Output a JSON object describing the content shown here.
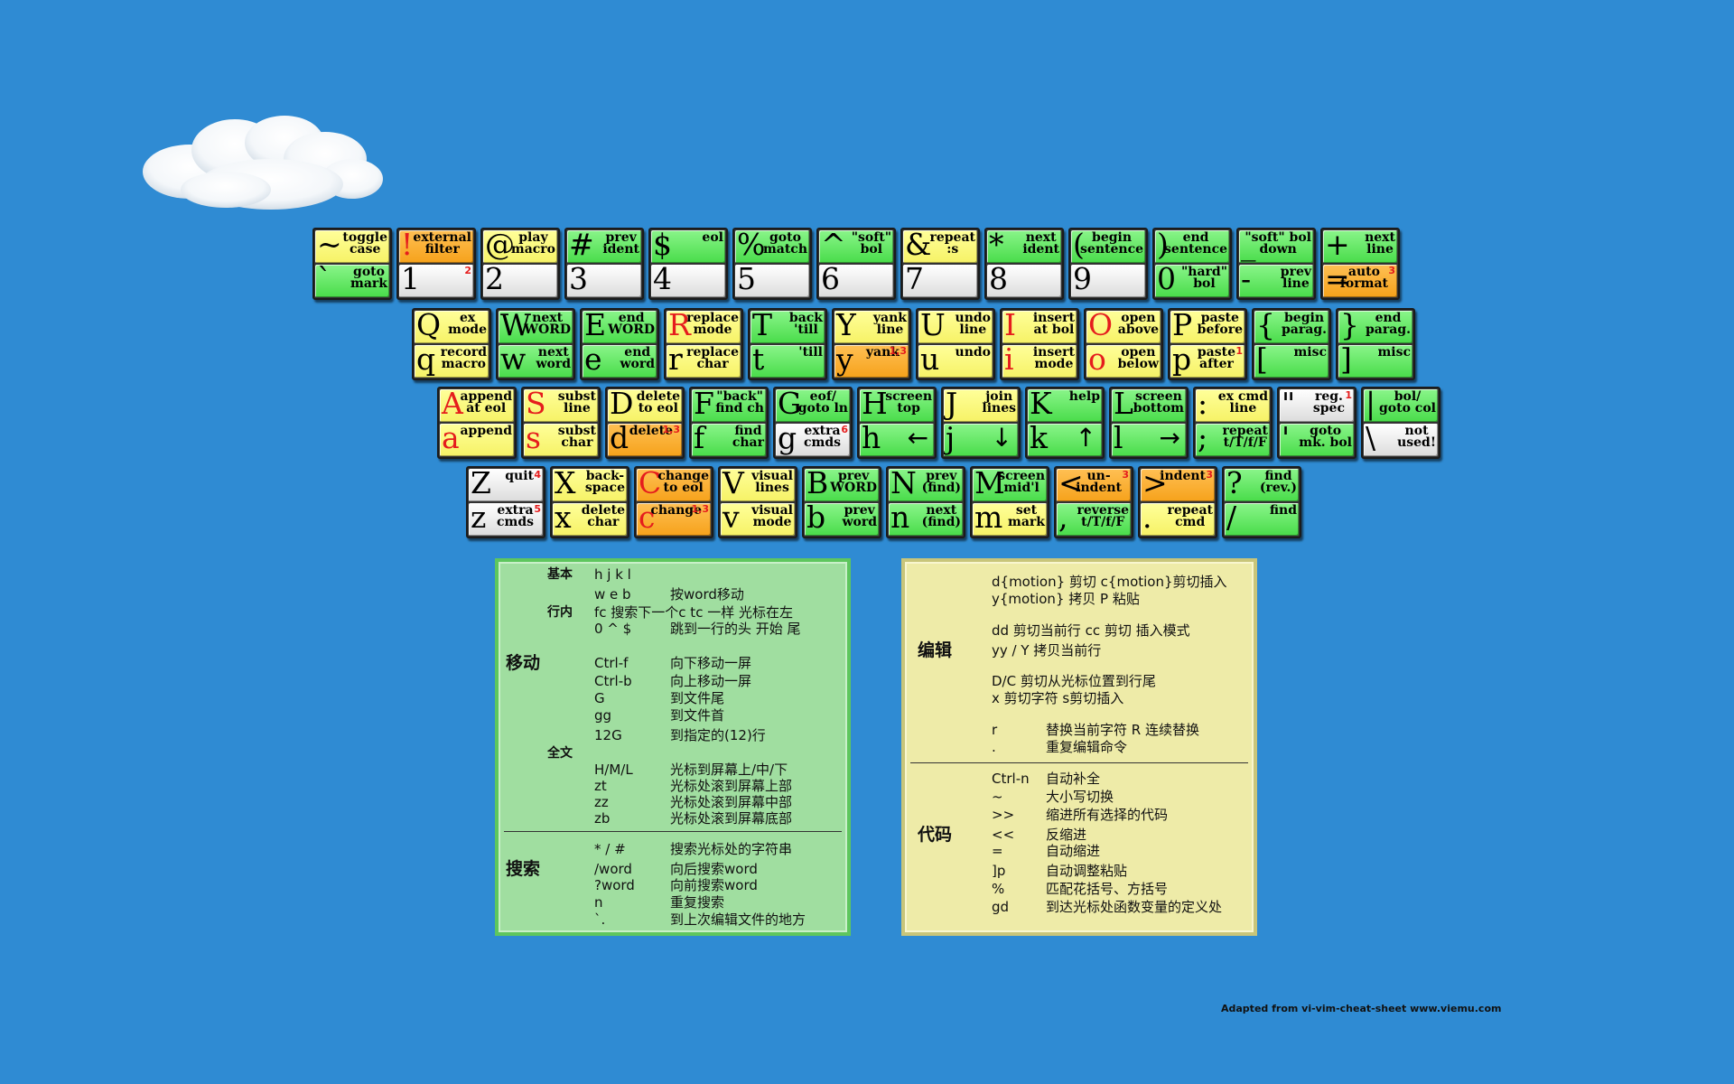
{
  "keyboard": {
    "rows": [
      [
        {
          "top": {
            "c": "~",
            "d": "toggle\ncase",
            "col": "y"
          },
          "bot": {
            "c": "`",
            "d": "goto\nmark",
            "col": "g"
          }
        },
        {
          "top": {
            "c": "!",
            "d": "external\nfilter",
            "col": "o",
            "red": true
          },
          "bot": {
            "c": "1",
            "d": "",
            "col": "w",
            "note": "2"
          }
        },
        {
          "top": {
            "c": "@",
            "d": "play\nmacro",
            "col": "y"
          },
          "bot": {
            "c": "2",
            "d": "",
            "col": "w"
          }
        },
        {
          "top": {
            "c": "#",
            "d": "prev\nident",
            "col": "g"
          },
          "bot": {
            "c": "3",
            "d": "",
            "col": "w"
          }
        },
        {
          "top": {
            "c": "$",
            "d": "eol",
            "col": "g"
          },
          "bot": {
            "c": "4",
            "d": "",
            "col": "w"
          }
        },
        {
          "top": {
            "c": "%",
            "d": "goto\nmatch",
            "col": "g"
          },
          "bot": {
            "c": "5",
            "d": "",
            "col": "w"
          }
        },
        {
          "top": {
            "c": "^",
            "d": "\"soft\"\nbol",
            "col": "g"
          },
          "bot": {
            "c": "6",
            "d": "",
            "col": "w"
          }
        },
        {
          "top": {
            "c": "&",
            "d": "repeat\n:s",
            "col": "y"
          },
          "bot": {
            "c": "7",
            "d": "",
            "col": "w"
          }
        },
        {
          "top": {
            "c": "*",
            "d": "next\nident",
            "col": "g"
          },
          "bot": {
            "c": "8",
            "d": "",
            "col": "w"
          }
        },
        {
          "top": {
            "c": "(",
            "d": "begin\nsentence",
            "col": "g"
          },
          "bot": {
            "c": "9",
            "d": "",
            "col": "w"
          }
        },
        {
          "top": {
            "c": ")",
            "d": "end\nsentence",
            "col": "g"
          },
          "bot": {
            "c": "0",
            "d": "\"hard\"\nbol",
            "col": "g"
          }
        },
        {
          "top": {
            "c": "_",
            "d": "\"soft\" bol\ndown",
            "col": "g"
          },
          "bot": {
            "c": "-",
            "d": "prev\nline",
            "col": "g"
          }
        },
        {
          "top": {
            "c": "+",
            "d": "next\nline",
            "col": "g"
          },
          "bot": {
            "c": "=",
            "d": "auto\nformat",
            "col": "o",
            "note": "3"
          }
        }
      ],
      [
        {
          "top": {
            "c": "Q",
            "d": "ex\nmode",
            "col": "y"
          },
          "bot": {
            "c": "q",
            "d": "record\nmacro",
            "col": "y"
          }
        },
        {
          "top": {
            "c": "W",
            "d": "next\nWORD",
            "col": "g"
          },
          "bot": {
            "c": "w",
            "d": "next\nword",
            "col": "g"
          }
        },
        {
          "top": {
            "c": "E",
            "d": "end\nWORD",
            "col": "g"
          },
          "bot": {
            "c": "e",
            "d": "end\nword",
            "col": "g"
          }
        },
        {
          "top": {
            "c": "R",
            "d": "replace\nmode",
            "col": "y",
            "red": true
          },
          "bot": {
            "c": "r",
            "d": "replace\nchar",
            "col": "y"
          }
        },
        {
          "top": {
            "c": "T",
            "d": "back\n'till",
            "col": "g"
          },
          "bot": {
            "c": "t",
            "d": "'till",
            "col": "g"
          }
        },
        {
          "top": {
            "c": "Y",
            "d": "yank\nline",
            "col": "y"
          },
          "bot": {
            "c": "y",
            "d": "yank",
            "col": "o",
            "note": "1,3"
          }
        },
        {
          "top": {
            "c": "U",
            "d": "undo\nline",
            "col": "y"
          },
          "bot": {
            "c": "u",
            "d": "undo",
            "col": "y"
          }
        },
        {
          "top": {
            "c": "I",
            "d": "insert\nat bol",
            "col": "y",
            "red": true
          },
          "bot": {
            "c": "i",
            "d": "insert\nmode",
            "col": "y",
            "red": true
          }
        },
        {
          "top": {
            "c": "O",
            "d": "open\nabove",
            "col": "y",
            "red": true
          },
          "bot": {
            "c": "o",
            "d": "open\nbelow",
            "col": "y",
            "red": true
          }
        },
        {
          "top": {
            "c": "P",
            "d": "paste\nbefore",
            "col": "y"
          },
          "bot": {
            "c": "p",
            "d": "paste\nafter",
            "col": "y",
            "note": "1"
          }
        },
        {
          "top": {
            "c": "{",
            "d": "begin\nparag.",
            "col": "g"
          },
          "bot": {
            "c": "[",
            "d": "misc",
            "col": "g"
          }
        },
        {
          "top": {
            "c": "}",
            "d": "end\nparag.",
            "col": "g"
          },
          "bot": {
            "c": "]",
            "d": "misc",
            "col": "g"
          }
        }
      ],
      [
        {
          "top": {
            "c": "A",
            "d": "append\nat eol",
            "col": "y",
            "red": true
          },
          "bot": {
            "c": "a",
            "d": "append",
            "col": "y",
            "red": true
          }
        },
        {
          "top": {
            "c": "S",
            "d": "subst\nline",
            "col": "y",
            "red": true
          },
          "bot": {
            "c": "s",
            "d": "subst\nchar",
            "col": "y",
            "red": true
          }
        },
        {
          "top": {
            "c": "D",
            "d": "delete\nto eol",
            "col": "y"
          },
          "bot": {
            "c": "d",
            "d": "delete",
            "col": "o",
            "note": "1,3"
          }
        },
        {
          "top": {
            "c": "F",
            "d": "\"back\"\nfind ch",
            "col": "g"
          },
          "bot": {
            "c": "f",
            "d": "find\nchar",
            "col": "g"
          }
        },
        {
          "top": {
            "c": "G",
            "d": "eof/\ngoto ln",
            "col": "g"
          },
          "bot": {
            "c": "g",
            "d": "extra\ncmds",
            "col": "w",
            "note": "6"
          }
        },
        {
          "top": {
            "c": "H",
            "d": "screen\ntop",
            "col": "g"
          },
          "bot": {
            "c": "h",
            "d": "←",
            "col": "g",
            "arrow": true
          }
        },
        {
          "top": {
            "c": "J",
            "d": "join\nlines",
            "col": "y"
          },
          "bot": {
            "c": "j",
            "d": "↓",
            "col": "g",
            "arrow": true
          }
        },
        {
          "top": {
            "c": "K",
            "d": "help",
            "col": "g"
          },
          "bot": {
            "c": "k",
            "d": "↑",
            "col": "g",
            "arrow": true
          }
        },
        {
          "top": {
            "c": "L",
            "d": "screen\nbottom",
            "col": "g"
          },
          "bot": {
            "c": "l",
            "d": "→",
            "col": "g",
            "arrow": true
          }
        },
        {
          "top": {
            "c": ":",
            "d": "ex cmd\nline",
            "col": "y"
          },
          "bot": {
            "c": ";",
            "d": "repeat\nt/T/f/F",
            "col": "g"
          }
        },
        {
          "top": {
            "c": "\"",
            "d": "reg.\nspec",
            "col": "w",
            "note": "1"
          },
          "bot": {
            "c": "'",
            "d": "goto\nmk. bol",
            "col": "g"
          }
        },
        {
          "top": {
            "c": "|",
            "d": "bol/\ngoto col",
            "col": "g"
          },
          "bot": {
            "c": "\\",
            "d": "not\nused!",
            "col": "w"
          }
        }
      ],
      [
        {
          "top": {
            "c": "Z",
            "d": "quit",
            "col": "w",
            "note": "4"
          },
          "bot": {
            "c": "z",
            "d": "extra\ncmds",
            "col": "w",
            "note": "5"
          }
        },
        {
          "top": {
            "c": "X",
            "d": "back-\nspace",
            "col": "y"
          },
          "bot": {
            "c": "x",
            "d": "delete\nchar",
            "col": "y"
          }
        },
        {
          "top": {
            "c": "C",
            "d": "change\nto eol",
            "col": "o",
            "red": true
          },
          "bot": {
            "c": "c",
            "d": "change",
            "col": "o",
            "red": true,
            "note": "1,3"
          }
        },
        {
          "top": {
            "c": "V",
            "d": "visual\nlines",
            "col": "y"
          },
          "bot": {
            "c": "v",
            "d": "visual\nmode",
            "col": "y"
          }
        },
        {
          "top": {
            "c": "B",
            "d": "prev\nWORD",
            "col": "g"
          },
          "bot": {
            "c": "b",
            "d": "prev\nword",
            "col": "g"
          }
        },
        {
          "top": {
            "c": "N",
            "d": "prev\n(find)",
            "col": "g"
          },
          "bot": {
            "c": "n",
            "d": "next\n(find)",
            "col": "g"
          }
        },
        {
          "top": {
            "c": "M",
            "d": "screen\nmid'l",
            "col": "g"
          },
          "bot": {
            "c": "m",
            "d": "set\nmark",
            "col": "y"
          }
        },
        {
          "top": {
            "c": "<",
            "d": "un-\nindent",
            "col": "o",
            "note": "3"
          },
          "bot": {
            "c": ",",
            "d": "reverse\nt/T/f/F",
            "col": "g"
          }
        },
        {
          "top": {
            "c": ">",
            "d": "indent",
            "col": "o",
            "note": "3"
          },
          "bot": {
            "c": ".",
            "d": "repeat\ncmd",
            "col": "y"
          }
        },
        {
          "top": {
            "c": "?",
            "d": "find\n(rev.)",
            "col": "g"
          },
          "bot": {
            "c": "/",
            "d": "find",
            "col": "g"
          }
        }
      ]
    ]
  },
  "panel_move": {
    "cat_move": "移动",
    "cat_search": "搜索",
    "sub_basic": "基本",
    "sub_inline": "行内",
    "sub_full": "全文",
    "lines": [
      {
        "k": "h    j    k    l",
        "v": ""
      },
      {
        "k": "w  e  b",
        "v": "按word移动"
      },
      {
        "k": "fc 搜索下一个c  tc 一样 光标在左",
        "v": ""
      },
      {
        "k": "0  ^  $",
        "v": "跳到一行的头 开始 尾"
      },
      {
        "k": "Ctrl-f",
        "v": "向下移动一屏"
      },
      {
        "k": "Ctrl-b",
        "v": "向上移动一屏"
      },
      {
        "k": "G",
        "v": "到文件尾"
      },
      {
        "k": "gg",
        "v": "到文件首"
      },
      {
        "k": "12G",
        "v": "到指定的(12)行"
      },
      {
        "k": "H/M/L",
        "v": "光标到屏幕上/中/下"
      },
      {
        "k": "zt",
        "v": "光标处滚到屏幕上部"
      },
      {
        "k": "zz",
        "v": "光标处滚到屏幕中部"
      },
      {
        "k": "zb",
        "v": "光标处滚到屏幕底部"
      },
      {
        "k": "* / #",
        "v": "搜索光标处的字符串"
      },
      {
        "k": "/word",
        "v": "向后搜索word"
      },
      {
        "k": "?word",
        "v": "向前搜索word"
      },
      {
        "k": "n",
        "v": "重复搜索"
      },
      {
        "k": "`.",
        "v": "到上次编辑文件的地方"
      }
    ]
  },
  "panel_edit": {
    "cat_edit": "编辑",
    "cat_code": "代码",
    "lines": [
      {
        "k": "d{motion} 剪切 c{motion}剪切插入",
        "v": ""
      },
      {
        "k": "y{motion} 拷贝  P 粘贴",
        "v": ""
      },
      {
        "k": "dd 剪切当前行   cc 剪切 插入模式",
        "v": ""
      },
      {
        "k": "yy / Y 拷贝当前行",
        "v": ""
      },
      {
        "k": "D/C 剪切从光标位置到行尾",
        "v": ""
      },
      {
        "k": "x  剪切字符   s剪切插入",
        "v": ""
      },
      {
        "k": "r",
        "v": "替换当前字符     R 连续替换"
      },
      {
        "k": ".",
        "v": "重复编辑命令"
      },
      {
        "k": "Ctrl-n",
        "v": "自动补全"
      },
      {
        "k": "~",
        "v": "大小写切换"
      },
      {
        "k": ">>",
        "v": "缩进所有选择的代码"
      },
      {
        "k": "<<",
        "v": "反缩进"
      },
      {
        "k": "=",
        "v": "自动缩进"
      },
      {
        "k": "]p",
        "v": "自动调整粘贴"
      },
      {
        "k": "%",
        "v": "匹配花括号、方括号"
      },
      {
        "k": "gd",
        "v": "到达光标处函数变量的定义处"
      }
    ]
  },
  "credit": "Adapted from vi-vim-cheat-sheet www.viemu.com"
}
